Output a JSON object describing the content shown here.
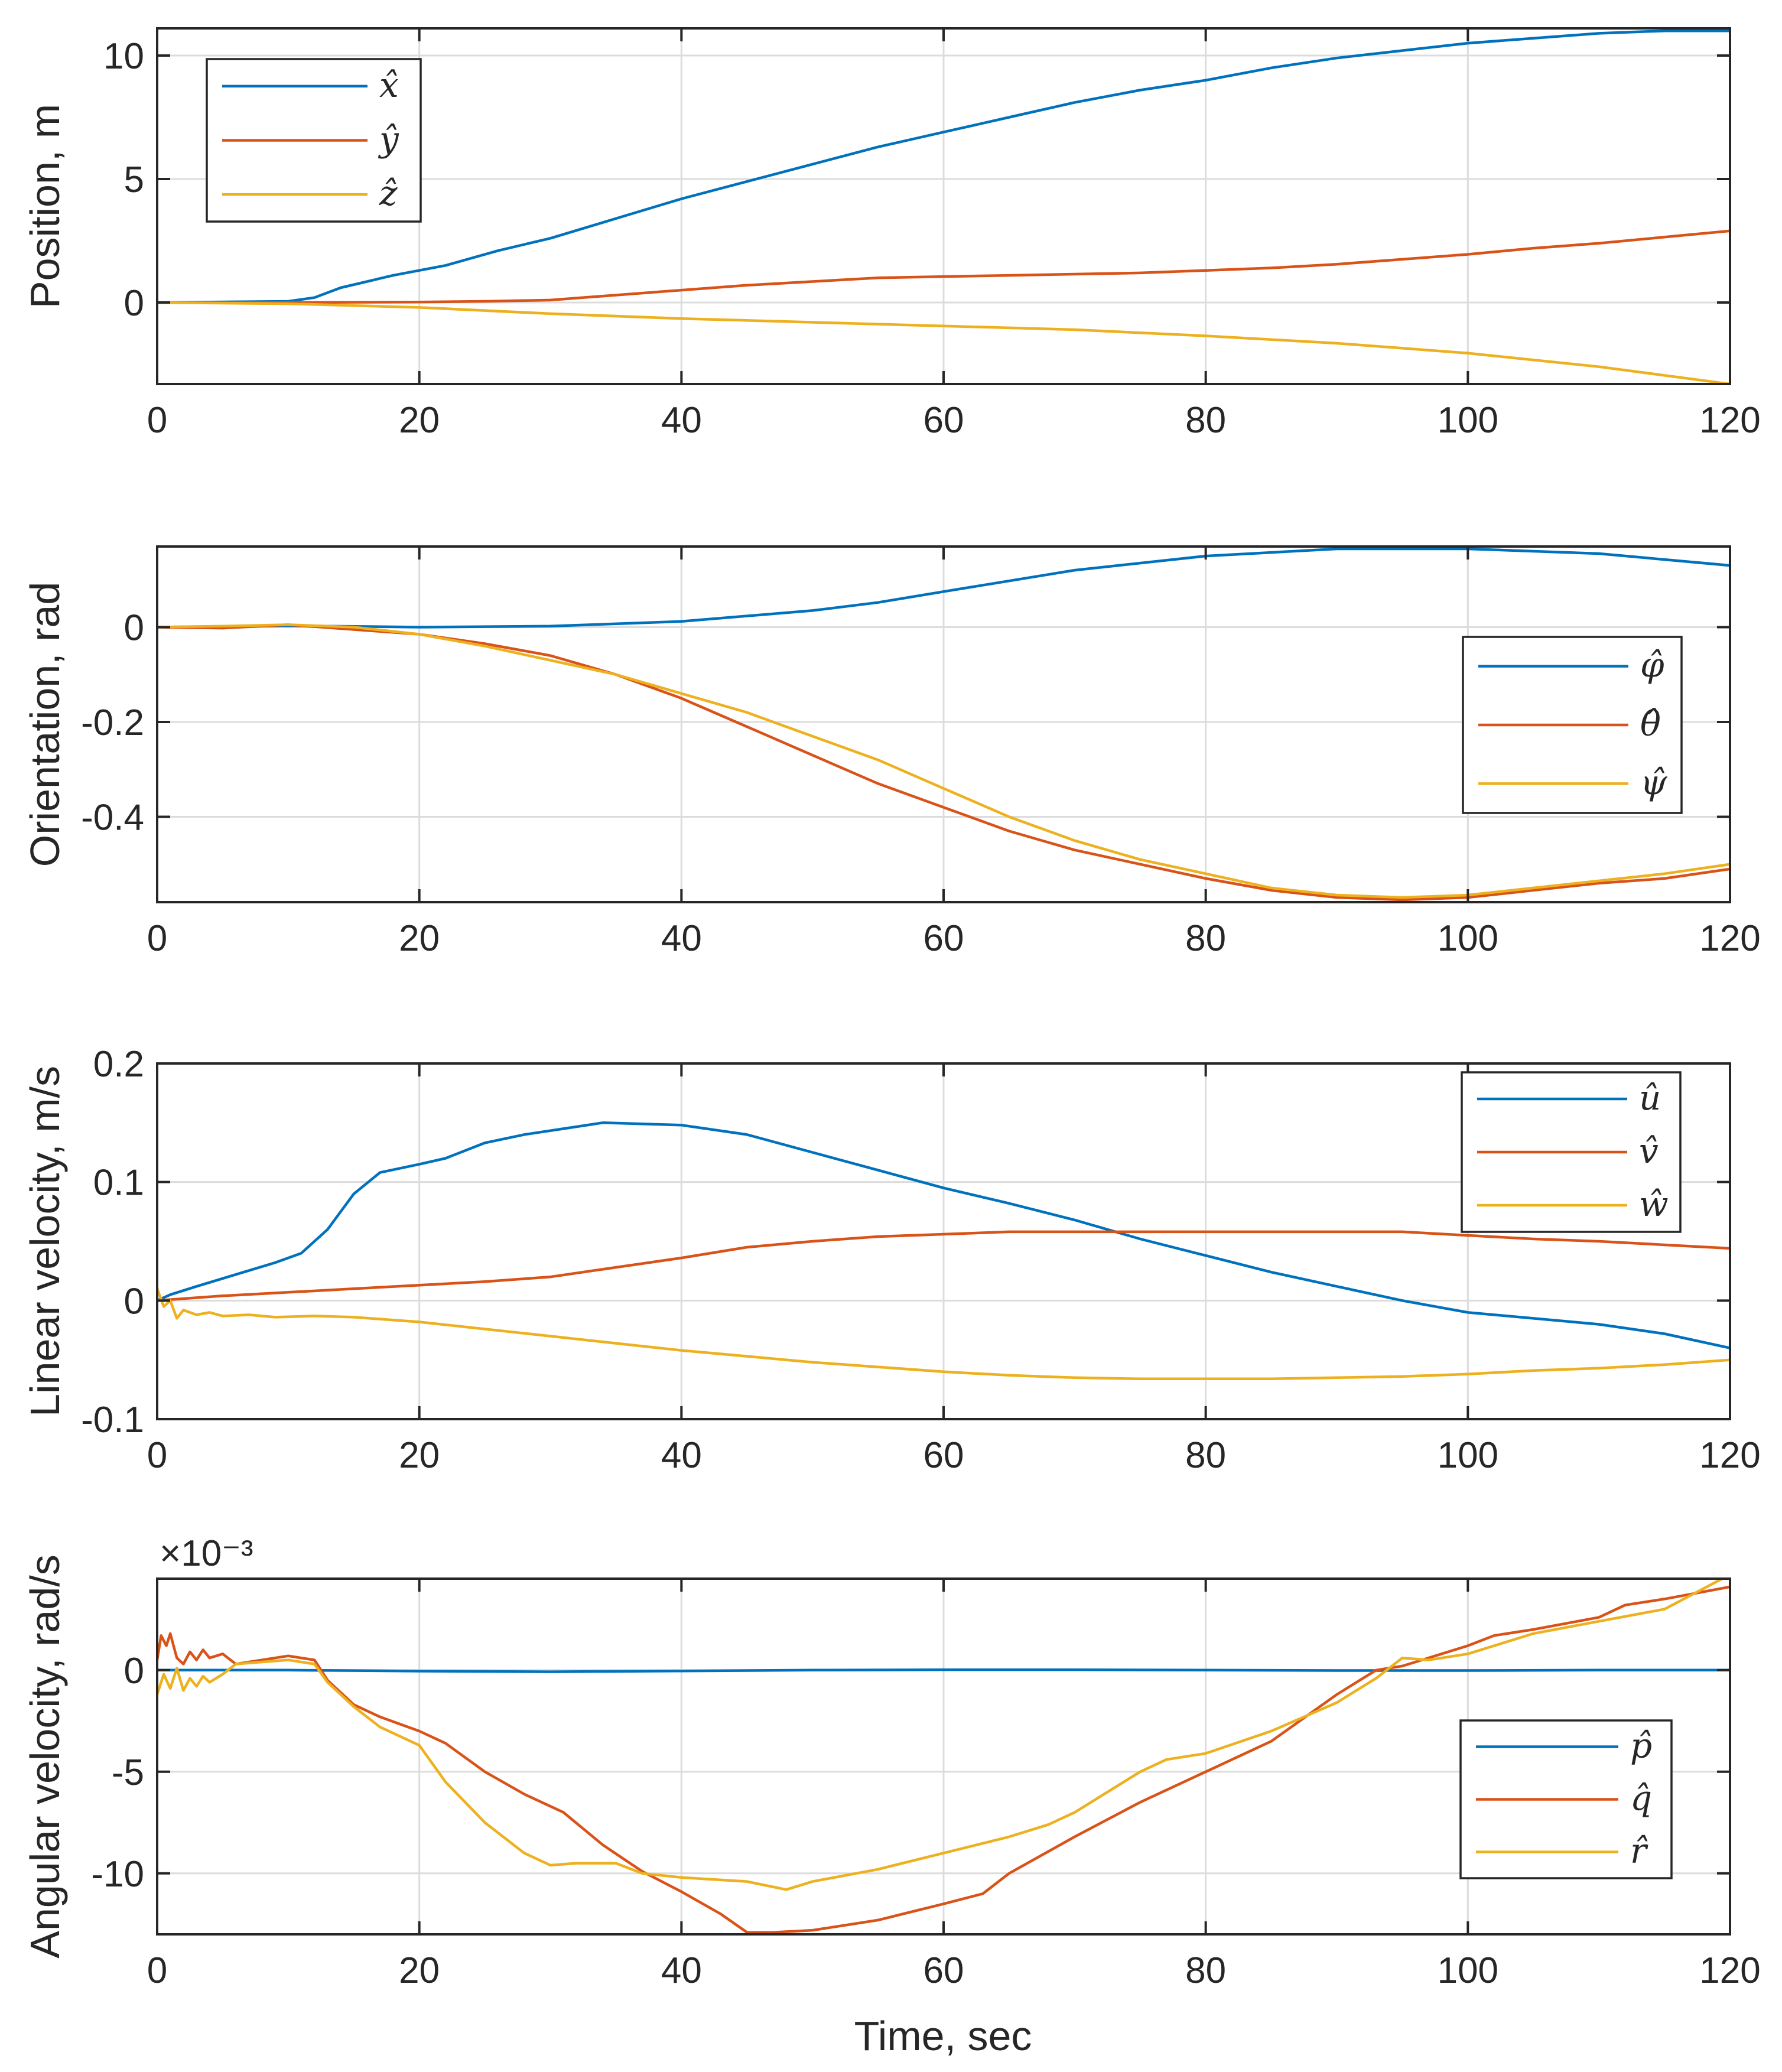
{
  "figure": {
    "xlabel": "Time, sec"
  },
  "chart_data": [
    {
      "type": "line",
      "ylabel": "Position, m",
      "xlim": [
        0,
        120
      ],
      "ylim": [
        -3.3,
        11.1
      ],
      "xticks": [
        0,
        20,
        40,
        60,
        80,
        100,
        120
      ],
      "xtick_labels": [
        "0",
        "20",
        "40",
        "60",
        "80",
        "100",
        "120"
      ],
      "yticks": [
        0,
        5,
        10
      ],
      "ytick_labels": [
        "0",
        "5",
        "10"
      ],
      "exponent_label": "",
      "legend_position": "top-left",
      "series": [
        {
          "name": "x̂",
          "color": "#0072BD",
          "x": [
            0,
            10,
            12,
            14,
            18,
            22,
            26,
            30,
            35,
            40,
            45,
            50,
            55,
            60,
            65,
            70,
            75,
            80,
            85,
            90,
            95,
            100,
            105,
            110,
            115,
            120
          ],
          "y": [
            0,
            0.05,
            0.2,
            0.6,
            1.1,
            1.5,
            2.1,
            2.6,
            3.4,
            4.2,
            4.9,
            5.6,
            6.3,
            6.9,
            7.5,
            8.1,
            8.6,
            9.0,
            9.5,
            9.9,
            10.2,
            10.5,
            10.7,
            10.9,
            11.0,
            11.0
          ]
        },
        {
          "name": "ŷ",
          "color": "#D95319",
          "x": [
            0,
            10,
            20,
            25,
            30,
            35,
            40,
            45,
            50,
            55,
            60,
            65,
            70,
            75,
            80,
            85,
            90,
            95,
            100,
            105,
            110,
            115,
            120
          ],
          "y": [
            0,
            0,
            0.02,
            0.05,
            0.1,
            0.3,
            0.5,
            0.7,
            0.85,
            1.0,
            1.05,
            1.1,
            1.15,
            1.2,
            1.3,
            1.4,
            1.55,
            1.75,
            1.95,
            2.2,
            2.4,
            2.65,
            2.9
          ]
        },
        {
          "name": "ẑ",
          "color": "#EDB120",
          "x": [
            0,
            10,
            20,
            30,
            40,
            50,
            60,
            70,
            80,
            90,
            100,
            110,
            120
          ],
          "y": [
            0,
            -0.05,
            -0.2,
            -0.45,
            -0.65,
            -0.8,
            -0.95,
            -1.1,
            -1.35,
            -1.65,
            -2.05,
            -2.6,
            -3.3
          ]
        }
      ]
    },
    {
      "type": "line",
      "ylabel": "Orientation, rad",
      "xlim": [
        0,
        120
      ],
      "ylim": [
        -0.58,
        0.17
      ],
      "xticks": [
        0,
        20,
        40,
        60,
        80,
        100,
        120
      ],
      "xtick_labels": [
        "0",
        "20",
        "40",
        "60",
        "80",
        "100",
        "120"
      ],
      "yticks": [
        0,
        -0.2,
        -0.4
      ],
      "ytick_labels": [
        "0",
        "-0.2",
        "-0.4"
      ],
      "exponent_label": "",
      "legend_position": "right",
      "series": [
        {
          "name": "φ̂",
          "color": "#0072BD",
          "x": [
            0,
            10,
            20,
            30,
            40,
            50,
            55,
            60,
            70,
            80,
            90,
            100,
            110,
            120
          ],
          "y": [
            0,
            0.003,
            0.0,
            0.002,
            0.012,
            0.035,
            0.052,
            0.075,
            0.12,
            0.15,
            0.165,
            0.165,
            0.155,
            0.13
          ]
        },
        {
          "name": "θ̂",
          "color": "#D95319",
          "x": [
            0,
            5,
            10,
            15,
            20,
            25,
            30,
            35,
            40,
            45,
            50,
            55,
            60,
            65,
            70,
            75,
            80,
            85,
            90,
            95,
            100,
            105,
            110,
            115,
            120
          ],
          "y": [
            0,
            -0.002,
            0.005,
            -0.005,
            -0.015,
            -0.035,
            -0.06,
            -0.1,
            -0.15,
            -0.21,
            -0.27,
            -0.33,
            -0.38,
            -0.43,
            -0.47,
            -0.5,
            -0.53,
            -0.555,
            -0.57,
            -0.575,
            -0.57,
            -0.555,
            -0.54,
            -0.53,
            -0.51
          ]
        },
        {
          "name": "ψ̂",
          "color": "#EDB120",
          "x": [
            0,
            5,
            10,
            15,
            20,
            25,
            30,
            35,
            40,
            45,
            50,
            55,
            60,
            65,
            70,
            75,
            80,
            85,
            90,
            95,
            100,
            105,
            110,
            115,
            120
          ],
          "y": [
            0,
            0.002,
            0.005,
            0.0,
            -0.015,
            -0.04,
            -0.07,
            -0.1,
            -0.14,
            -0.18,
            -0.23,
            -0.28,
            -0.34,
            -0.4,
            -0.45,
            -0.49,
            -0.52,
            -0.55,
            -0.565,
            -0.57,
            -0.565,
            -0.55,
            -0.535,
            -0.52,
            -0.5
          ]
        }
      ]
    },
    {
      "type": "line",
      "ylabel": "Linear velocity, m/s",
      "xlim": [
        0,
        120
      ],
      "ylim": [
        -0.1,
        0.2
      ],
      "xticks": [
        0,
        20,
        40,
        60,
        80,
        100,
        120
      ],
      "xtick_labels": [
        "0",
        "20",
        "40",
        "60",
        "80",
        "100",
        "120"
      ],
      "yticks": [
        0.2,
        0.1,
        0,
        -0.1
      ],
      "ytick_labels": [
        "0.2",
        "0.1",
        "0",
        "-0.1"
      ],
      "exponent_label": "",
      "legend_position": "top-right",
      "series": [
        {
          "name": "û",
          "color": "#0072BD",
          "x": [
            0,
            1,
            3,
            6,
            9,
            11,
            12,
            13,
            15,
            17,
            20,
            22,
            25,
            28,
            31,
            34,
            37,
            40,
            45,
            50,
            55,
            60,
            65,
            70,
            75,
            80,
            85,
            90,
            95,
            100,
            105,
            110,
            115,
            120
          ],
          "y": [
            0.0,
            0.005,
            0.012,
            0.022,
            0.032,
            0.04,
            0.05,
            0.06,
            0.09,
            0.108,
            0.115,
            0.12,
            0.133,
            0.14,
            0.145,
            0.15,
            0.149,
            0.148,
            0.14,
            0.125,
            0.11,
            0.095,
            0.082,
            0.068,
            0.052,
            0.038,
            0.024,
            0.012,
            0.0,
            -0.01,
            -0.015,
            -0.02,
            -0.028,
            -0.04
          ]
        },
        {
          "name": "v̂",
          "color": "#D95319",
          "x": [
            0,
            5,
            10,
            15,
            20,
            25,
            30,
            35,
            40,
            45,
            50,
            55,
            60,
            65,
            70,
            75,
            80,
            85,
            90,
            95,
            100,
            105,
            110,
            115,
            120
          ],
          "y": [
            0,
            0.004,
            0.007,
            0.01,
            0.013,
            0.016,
            0.02,
            0.028,
            0.036,
            0.045,
            0.05,
            0.054,
            0.056,
            0.058,
            0.058,
            0.058,
            0.058,
            0.058,
            0.058,
            0.058,
            0.055,
            0.052,
            0.05,
            0.047,
            0.044
          ]
        },
        {
          "name": "ŵ",
          "color": "#EDB120",
          "x": [
            0,
            0.5,
            1,
            1.5,
            2,
            3,
            4,
            5,
            7,
            9,
            12,
            15,
            20,
            25,
            30,
            35,
            40,
            45,
            50,
            55,
            60,
            65,
            70,
            75,
            80,
            85,
            90,
            95,
            100,
            105,
            110,
            115,
            120
          ],
          "y": [
            0.01,
            -0.005,
            0.0,
            -0.015,
            -0.008,
            -0.012,
            -0.01,
            -0.013,
            -0.012,
            -0.014,
            -0.013,
            -0.014,
            -0.018,
            -0.024,
            -0.03,
            -0.036,
            -0.042,
            -0.047,
            -0.052,
            -0.056,
            -0.06,
            -0.063,
            -0.065,
            -0.066,
            -0.066,
            -0.066,
            -0.065,
            -0.064,
            -0.062,
            -0.059,
            -0.057,
            -0.054,
            -0.05
          ]
        }
      ]
    },
    {
      "type": "line",
      "ylabel": "Angular velocity, rad/s",
      "xlim": [
        0,
        120
      ],
      "ylim": [
        -13,
        4.5
      ],
      "xticks": [
        0,
        20,
        40,
        60,
        80,
        100,
        120
      ],
      "xtick_labels": [
        "0",
        "20",
        "40",
        "60",
        "80",
        "100",
        "120"
      ],
      "yticks": [
        0,
        -5,
        -10
      ],
      "ytick_labels": [
        "0",
        "-5",
        "-10"
      ],
      "exponent_label": "×10⁻³",
      "legend_position": "bottom-right",
      "series": [
        {
          "name": "p̂",
          "color": "#0072BD",
          "x": [
            0,
            10,
            20,
            30,
            40,
            50,
            60,
            70,
            80,
            90,
            100,
            110,
            120
          ],
          "y": [
            0,
            0,
            -0.05,
            -0.08,
            -0.04,
            0.0,
            0.02,
            0.02,
            0.0,
            -0.02,
            -0.02,
            0.0,
            0.0
          ]
        },
        {
          "name": "q̂",
          "color": "#D95319",
          "x": [
            0,
            0.3,
            0.7,
            1,
            1.5,
            2,
            2.5,
            3,
            3.5,
            4,
            5,
            6,
            8,
            10,
            11,
            12,
            13,
            15,
            17,
            20,
            22,
            25,
            28,
            31,
            34,
            37,
            40,
            43,
            45,
            47,
            50,
            55,
            60,
            63,
            65,
            70,
            75,
            80,
            85,
            90,
            93,
            95,
            100,
            102,
            105,
            110,
            112,
            115,
            120
          ],
          "y": [
            0.5,
            1.7,
            1.2,
            1.8,
            0.6,
            0.3,
            0.9,
            0.5,
            1.0,
            0.6,
            0.8,
            0.3,
            0.5,
            0.7,
            0.6,
            0.5,
            -0.5,
            -1.7,
            -2.3,
            -3.0,
            -3.6,
            -5.0,
            -6.1,
            -7.0,
            -8.6,
            -9.9,
            -10.9,
            -12.0,
            -12.9,
            -12.9,
            -12.8,
            -12.3,
            -11.5,
            -11.0,
            -10.0,
            -8.2,
            -6.5,
            -5.0,
            -3.5,
            -1.2,
            0.0,
            0.2,
            1.2,
            1.7,
            2.0,
            2.6,
            3.2,
            3.5,
            4.1
          ]
        },
        {
          "name": "r̂",
          "color": "#EDB120",
          "x": [
            0,
            0.5,
            1,
            1.5,
            2,
            2.5,
            3,
            3.5,
            4,
            5,
            6,
            8,
            10,
            12,
            13,
            15,
            17,
            20,
            22,
            25,
            28,
            30,
            32,
            35,
            37,
            40,
            45,
            48,
            50,
            55,
            60,
            65,
            68,
            70,
            73,
            75,
            77,
            80,
            85,
            90,
            93,
            95,
            97,
            100,
            105,
            110,
            115,
            120
          ],
          "y": [
            -1.2,
            -0.2,
            -0.9,
            0.1,
            -1.0,
            -0.4,
            -0.8,
            -0.3,
            -0.6,
            -0.2,
            0.3,
            0.4,
            0.5,
            0.3,
            -0.6,
            -1.8,
            -2.8,
            -3.7,
            -5.5,
            -7.5,
            -9.0,
            -9.6,
            -9.5,
            -9.5,
            -10.0,
            -10.2,
            -10.4,
            -10.8,
            -10.4,
            -9.8,
            -9.0,
            -8.2,
            -7.6,
            -7.0,
            -5.8,
            -5.0,
            -4.4,
            -4.1,
            -3.0,
            -1.6,
            -0.4,
            0.6,
            0.5,
            0.8,
            1.8,
            2.4,
            3.0,
            4.7
          ]
        }
      ]
    }
  ]
}
